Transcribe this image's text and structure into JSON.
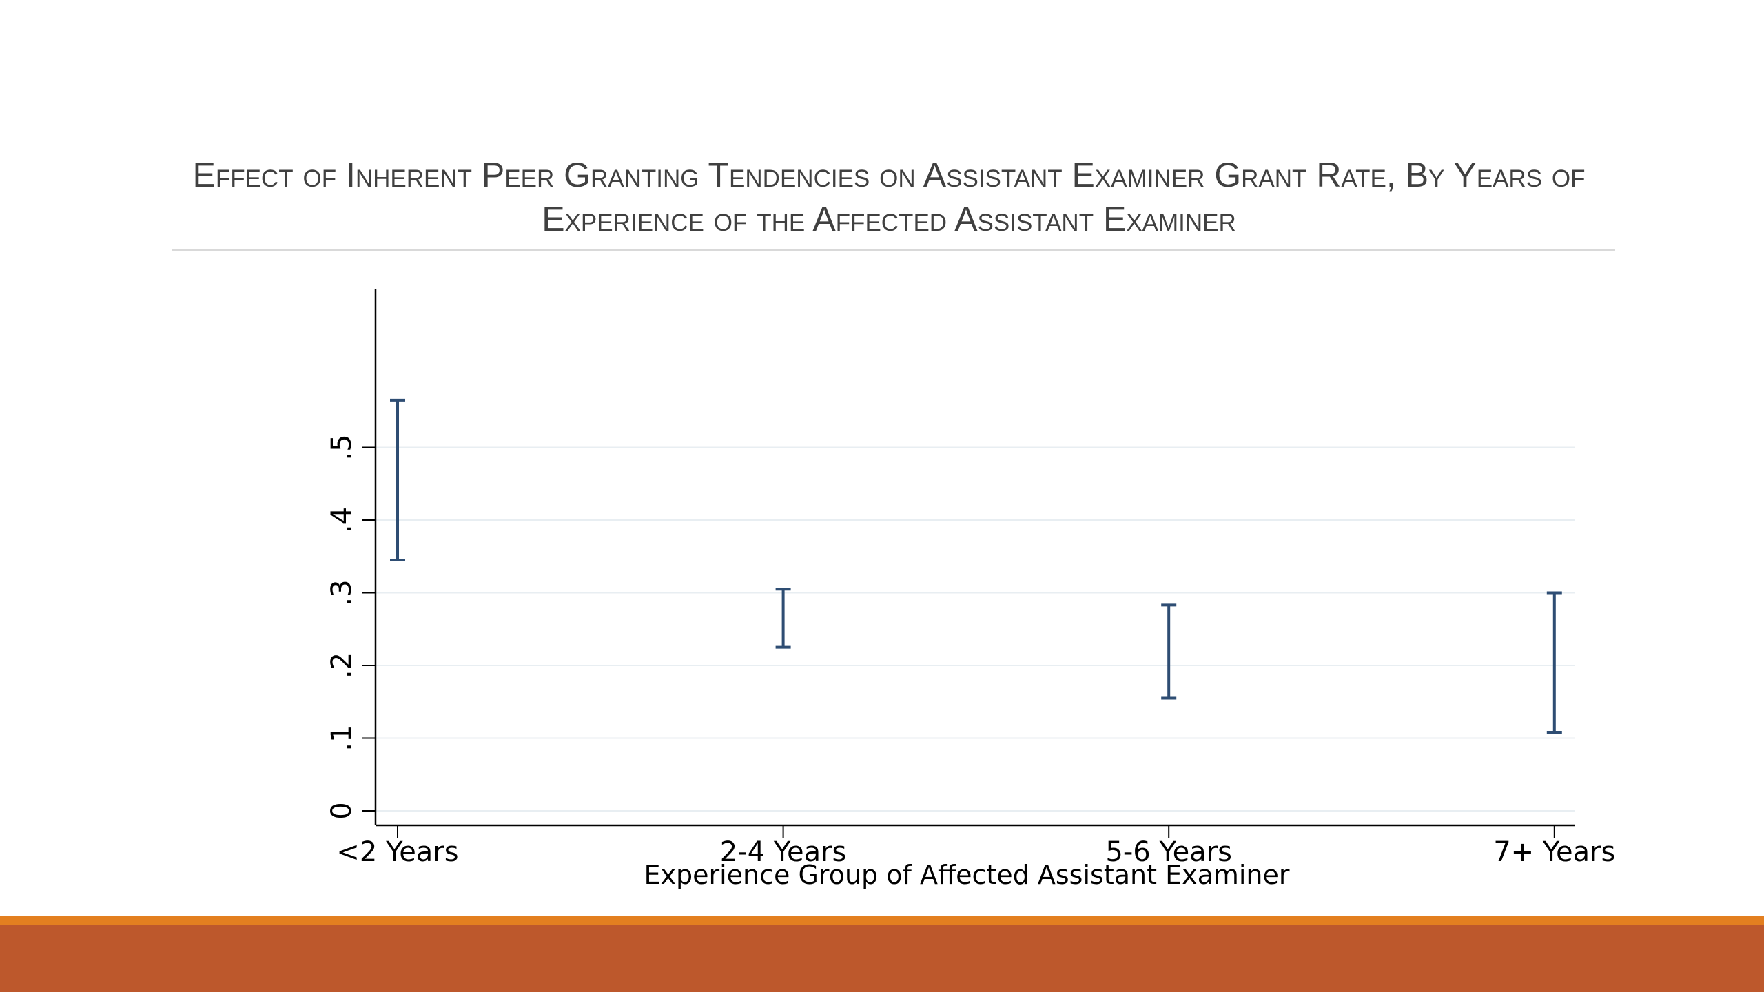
{
  "slide": {
    "title": "Effect of Inherent Peer Granting Tendencies on Assistant Examiner Grant Rate, By Years of Experience of the Affected Assistant Examiner"
  },
  "colors": {
    "interval": "#2e4d73",
    "axis": "#000000",
    "grid": "#e8eef2",
    "footer_top": "#e37f20",
    "footer_main": "#bd582c"
  },
  "chart_data": {
    "type": "range",
    "title": "Effect of Inherent Peer Granting Tendencies on Assistant Examiner Grant Rate, By Years of Experience of the Affected Assistant Examiner",
    "xlabel": "Experience Group of Affected Assistant Examiner",
    "ylabel": "",
    "categories": [
      "<2 Years",
      "2-4 Years",
      "5-6 Years",
      "7+ Years"
    ],
    "lower": [
      0.345,
      0.225,
      0.155,
      0.108
    ],
    "upper": [
      0.565,
      0.305,
      0.283,
      0.3
    ],
    "yticks": [
      0,
      0.1,
      0.2,
      0.3,
      0.4,
      0.5
    ],
    "ytick_labels": [
      "0",
      ".1",
      ".2",
      ".3",
      ".4",
      ".5"
    ],
    "ylim": [
      -0.02,
      0.72
    ],
    "grid": true,
    "legend": "none"
  }
}
